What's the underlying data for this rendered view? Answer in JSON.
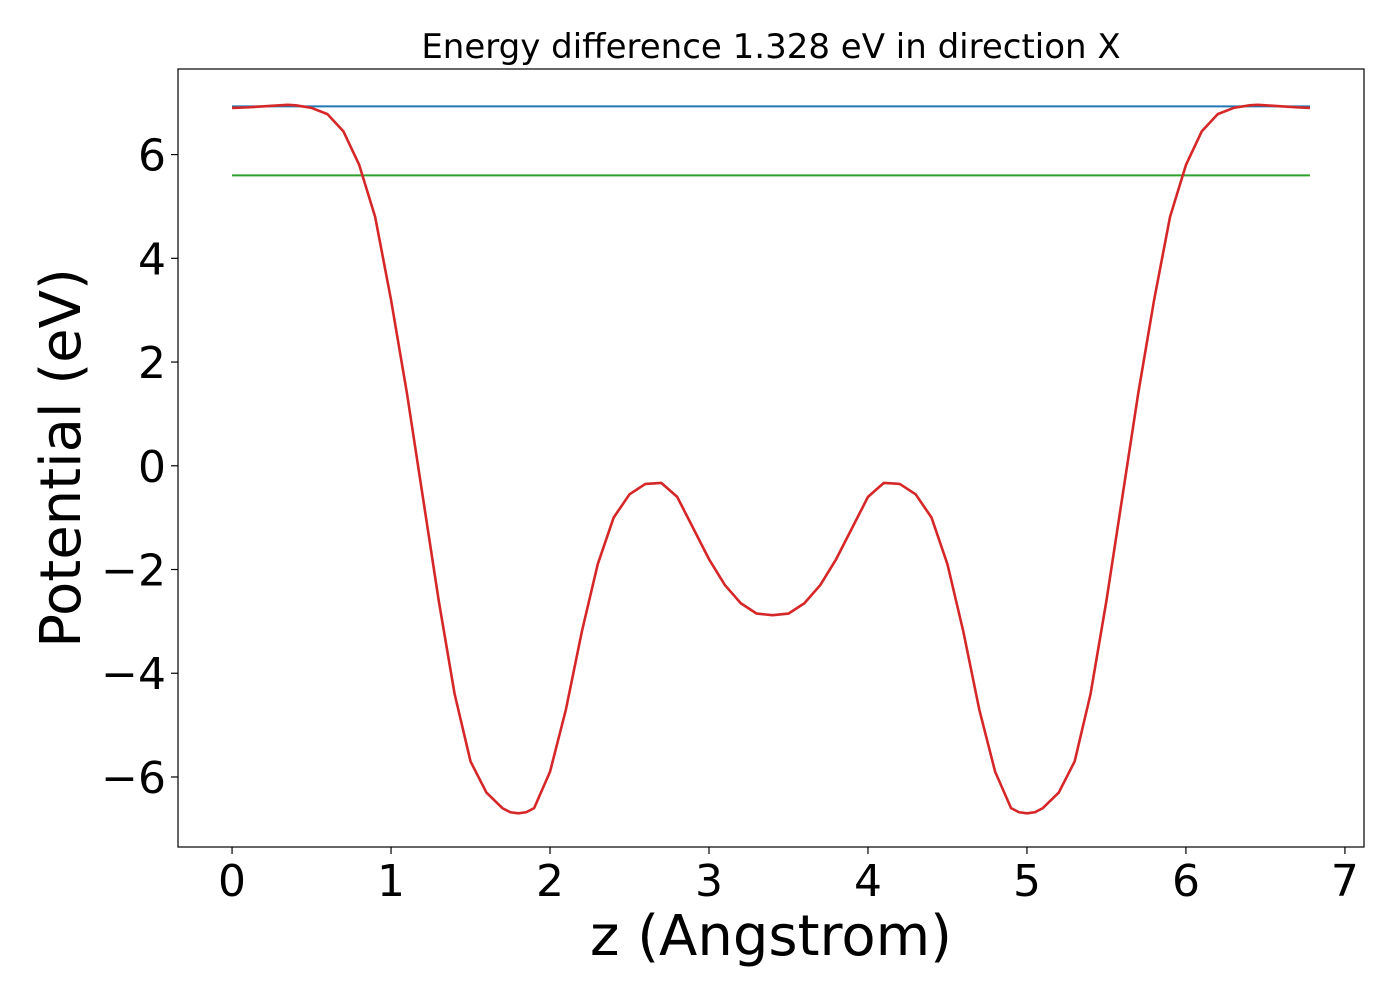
{
  "chart_data": {
    "type": "line",
    "title": "Energy difference 1.328 eV in direction X",
    "xlabel": "z (Angstrom)",
    "ylabel": "Potential (eV)",
    "xlim": [
      -0.34,
      7.12
    ],
    "ylim": [
      -7.35,
      7.65
    ],
    "xticks": [
      0,
      1,
      2,
      3,
      4,
      5,
      6,
      7
    ],
    "xtick_labels": [
      "0",
      "1",
      "2",
      "3",
      "4",
      "5",
      "6",
      "7"
    ],
    "yticks": [
      -6,
      -4,
      -2,
      0,
      2,
      4,
      6
    ],
    "ytick_labels": [
      "−6",
      "−4",
      "−2",
      "0",
      "2",
      "4",
      "6"
    ],
    "grid": false,
    "legend": "none",
    "series": [
      {
        "color": "#d62728",
        "x": [
          0.0,
          0.1,
          0.2,
          0.3,
          0.35,
          0.4,
          0.5,
          0.6,
          0.7,
          0.8,
          0.9,
          1.0,
          1.1,
          1.2,
          1.3,
          1.4,
          1.5,
          1.6,
          1.7,
          1.75,
          1.8,
          1.85,
          1.9,
          2.0,
          2.1,
          2.2,
          2.3,
          2.4,
          2.5,
          2.6,
          2.7,
          2.8,
          2.9,
          3.0,
          3.1,
          3.2,
          3.3,
          3.4,
          3.5,
          3.6,
          3.7,
          3.8,
          3.9,
          4.0,
          4.1,
          4.2,
          4.3,
          4.4,
          4.5,
          4.6,
          4.7,
          4.8,
          4.9,
          4.95,
          5.0,
          5.05,
          5.1,
          5.2,
          5.3,
          5.4,
          5.5,
          5.6,
          5.7,
          5.8,
          5.9,
          6.0,
          6.1,
          6.2,
          6.3,
          6.4,
          6.45,
          6.5,
          6.6,
          6.7,
          6.78
        ],
        "y": [
          6.9,
          6.91,
          6.93,
          6.95,
          6.96,
          6.95,
          6.9,
          6.78,
          6.45,
          5.8,
          4.8,
          3.2,
          1.4,
          -0.6,
          -2.6,
          -4.4,
          -5.7,
          -6.3,
          -6.6,
          -6.68,
          -6.7,
          -6.68,
          -6.6,
          -5.9,
          -4.7,
          -3.2,
          -1.9,
          -1.0,
          -0.55,
          -0.35,
          -0.33,
          -0.6,
          -1.2,
          -1.8,
          -2.3,
          -2.65,
          -2.85,
          -2.88,
          -2.85,
          -2.65,
          -2.3,
          -1.8,
          -1.2,
          -0.6,
          -0.33,
          -0.35,
          -0.55,
          -1.0,
          -1.9,
          -3.2,
          -4.7,
          -5.9,
          -6.6,
          -6.68,
          -6.7,
          -6.68,
          -6.6,
          -6.3,
          -5.7,
          -4.4,
          -2.6,
          -0.6,
          1.4,
          3.2,
          4.8,
          5.8,
          6.45,
          6.78,
          6.9,
          6.95,
          6.96,
          6.95,
          6.93,
          6.91,
          6.9
        ]
      },
      {
        "color": "#1f77b4",
        "x": [
          0.0,
          6.78
        ],
        "y": [
          6.93,
          6.93
        ]
      },
      {
        "color": "#2ca02c",
        "x": [
          0.0,
          6.78
        ],
        "y": [
          5.6,
          5.6
        ]
      }
    ]
  }
}
